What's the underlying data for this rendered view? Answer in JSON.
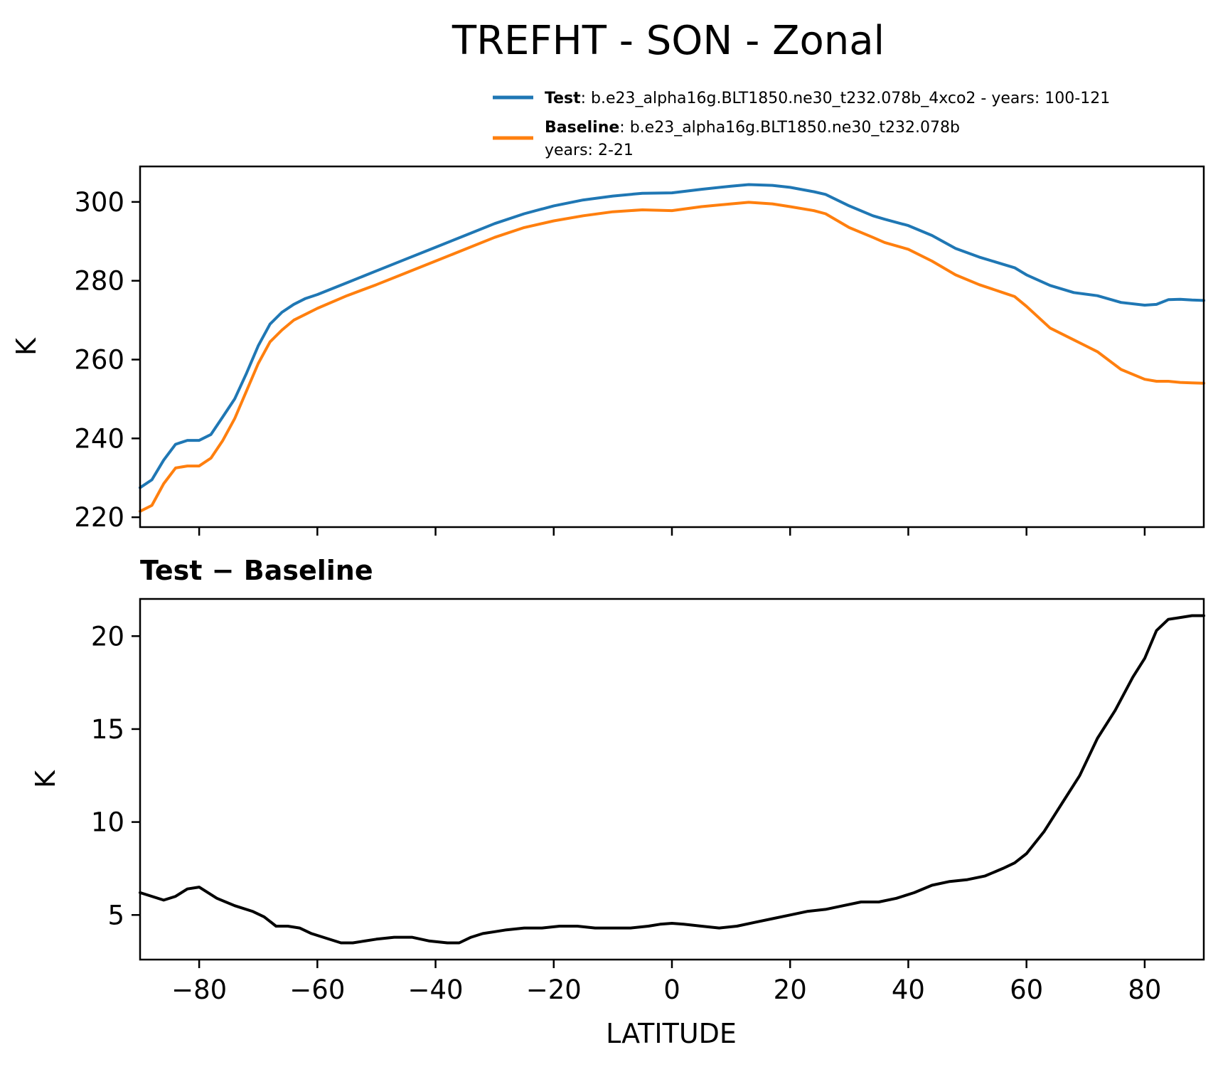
{
  "chart_data": [
    {
      "type": "line",
      "title": "TREFHT - SON - Zonal",
      "xlabel": "",
      "ylabel": "K",
      "xlim": [
        -90,
        90
      ],
      "ylim": [
        217.5,
        309.0
      ],
      "xticks": [
        -80,
        -60,
        -40,
        -20,
        0,
        20,
        40,
        60,
        80
      ],
      "yticks": [
        220,
        240,
        260,
        280,
        300
      ],
      "xtick_labels_shown": false,
      "legend": {
        "position": "above-right",
        "entries": [
          {
            "bold": "Test",
            "sep": ": ",
            "text": "b.e23_alpha16g.BLT1850.ne30_t232.078b_4xco2 - years: 100-121",
            "text2": "",
            "color": "#1f77b4"
          },
          {
            "bold": "Baseline",
            "sep": ": ",
            "text": "b.e23_alpha16g.BLT1850.ne30_t232.078b",
            "text2": "years: 2-21",
            "color": "#ff7f0e"
          }
        ]
      },
      "series": [
        {
          "name": "Test",
          "color": "#1f77b4",
          "x": [
            -90,
            -88,
            -86,
            -84,
            -82,
            -80,
            -78,
            -76,
            -74,
            -72,
            -70,
            -68,
            -66,
            -64,
            -62,
            -60,
            -55,
            -50,
            -45,
            -40,
            -35,
            -30,
            -25,
            -20,
            -15,
            -10,
            -5,
            0,
            5,
            10,
            13,
            17,
            20,
            24,
            26,
            30,
            34,
            36,
            40,
            44,
            48,
            52,
            56,
            58,
            60,
            64,
            68,
            72,
            76,
            80,
            82,
            84,
            86,
            88,
            90
          ],
          "y": [
            227.5,
            229.5,
            234.5,
            238.5,
            239.5,
            239.5,
            241.0,
            245.5,
            250.0,
            256.5,
            263.5,
            269.0,
            272.0,
            274.0,
            275.5,
            276.5,
            279.5,
            282.5,
            285.5,
            288.5,
            291.5,
            294.5,
            297.0,
            299.0,
            300.5,
            301.5,
            302.2,
            302.3,
            303.2,
            304.0,
            304.4,
            304.2,
            303.7,
            302.6,
            301.9,
            299.0,
            296.5,
            295.6,
            294.0,
            291.5,
            288.2,
            286.0,
            284.2,
            283.3,
            281.5,
            278.8,
            277.0,
            276.2,
            274.5,
            273.8,
            274.0,
            275.2,
            275.3,
            275.1,
            275.0
          ]
        },
        {
          "name": "Baseline",
          "color": "#ff7f0e",
          "x": [
            -90,
            -88,
            -86,
            -84,
            -82,
            -80,
            -78,
            -76,
            -74,
            -72,
            -70,
            -68,
            -66,
            -64,
            -62,
            -60,
            -55,
            -50,
            -45,
            -40,
            -35,
            -30,
            -25,
            -20,
            -15,
            -10,
            -5,
            0,
            5,
            10,
            13,
            17,
            20,
            24,
            26,
            30,
            34,
            36,
            40,
            44,
            48,
            52,
            56,
            58,
            60,
            64,
            68,
            72,
            76,
            80,
            82,
            84,
            86,
            88,
            90
          ],
          "y": [
            221.5,
            223.0,
            228.5,
            232.5,
            233.0,
            233.0,
            235.0,
            239.5,
            245.0,
            252.0,
            259.0,
            264.5,
            267.5,
            270.0,
            271.5,
            273.0,
            276.2,
            279.0,
            282.0,
            285.0,
            288.0,
            291.0,
            293.5,
            295.2,
            296.5,
            297.5,
            298.0,
            297.8,
            298.8,
            299.5,
            299.9,
            299.5,
            298.8,
            297.8,
            297.0,
            293.5,
            291.0,
            289.7,
            288.0,
            285.0,
            281.5,
            279.0,
            277.0,
            276.0,
            273.5,
            268.0,
            265.0,
            262.0,
            257.5,
            255.0,
            254.5,
            254.5,
            254.2,
            254.1,
            254.0
          ]
        }
      ]
    },
    {
      "type": "line",
      "title": "Test − Baseline",
      "xlabel": "LATITUDE",
      "ylabel": "K",
      "xlim": [
        -90,
        90
      ],
      "ylim": [
        2.6,
        22.0
      ],
      "xticks": [
        -80,
        -60,
        -40,
        -20,
        0,
        20,
        40,
        60,
        80
      ],
      "xtick_labels": [
        "−80",
        "−60",
        "−40",
        "−20",
        "0",
        "20",
        "40",
        "60",
        "80"
      ],
      "yticks": [
        5,
        10,
        15,
        20
      ],
      "series": [
        {
          "name": "Test − Baseline",
          "color": "#000000",
          "x": [
            -90,
            -88,
            -86,
            -84,
            -82,
            -80,
            -79,
            -77,
            -74,
            -71,
            -69,
            -67,
            -65,
            -63,
            -61,
            -59,
            -56,
            -54,
            -52,
            -50,
            -47,
            -44,
            -41,
            -38,
            -36,
            -34,
            -32,
            -30,
            -28,
            -25,
            -22,
            -19,
            -16,
            -13,
            -10,
            -7,
            -4,
            -2,
            0,
            2,
            5,
            8,
            11,
            14,
            17,
            20,
            23,
            26,
            29,
            32,
            35,
            38,
            41,
            44,
            47,
            50,
            53,
            56,
            58,
            60,
            63,
            66,
            69,
            72,
            75,
            78,
            80,
            82,
            84,
            86,
            88,
            90
          ],
          "y": [
            6.2,
            6.0,
            5.8,
            6.0,
            6.4,
            6.5,
            6.3,
            5.9,
            5.5,
            5.2,
            4.9,
            4.4,
            4.4,
            4.3,
            4.0,
            3.8,
            3.5,
            3.5,
            3.6,
            3.7,
            3.8,
            3.8,
            3.6,
            3.5,
            3.5,
            3.8,
            4.0,
            4.1,
            4.2,
            4.3,
            4.3,
            4.4,
            4.4,
            4.3,
            4.3,
            4.3,
            4.4,
            4.5,
            4.55,
            4.5,
            4.4,
            4.3,
            4.4,
            4.6,
            4.8,
            5.0,
            5.2,
            5.3,
            5.5,
            5.7,
            5.7,
            5.9,
            6.2,
            6.6,
            6.8,
            6.9,
            7.1,
            7.5,
            7.8,
            8.3,
            9.5,
            11.0,
            12.5,
            14.5,
            16.0,
            17.8,
            18.8,
            20.3,
            20.9,
            21.0,
            21.1,
            21.1
          ]
        }
      ]
    }
  ]
}
